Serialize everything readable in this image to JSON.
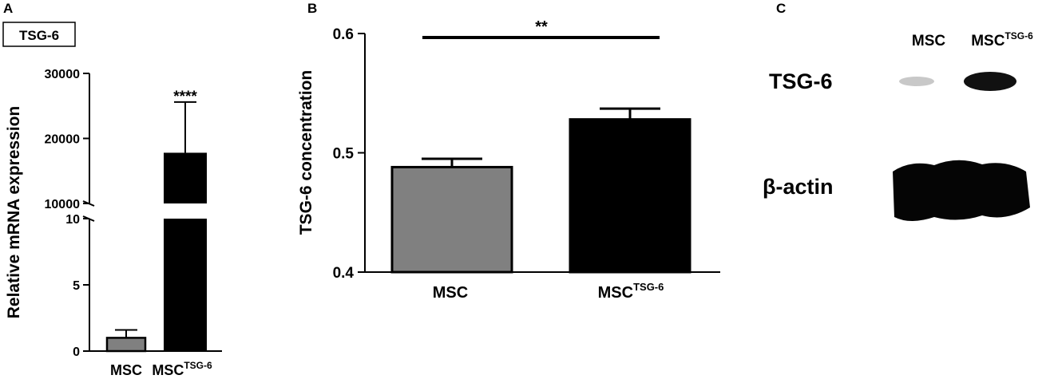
{
  "figure": {
    "panels": [
      {
        "letter": "A",
        "gene_box": "TSG-6",
        "ylabel": "Relative mRNA expression",
        "upper_ticks": [
          "10000",
          "20000",
          "30000"
        ],
        "lower_ticks": [
          "0",
          "5",
          "10"
        ],
        "significance": "****",
        "categories": [
          {
            "base": "MSC",
            "sup": ""
          },
          {
            "base": "MSC",
            "sup": "TSG-6"
          }
        ]
      },
      {
        "letter": "B",
        "ylabel": "TSG-6 concentration",
        "ticks": [
          "0.4",
          "0.5",
          "0.6"
        ],
        "significance": "**",
        "categories": [
          {
            "base": "MSC",
            "sup": ""
          },
          {
            "base": "MSC",
            "sup": "TSG-6"
          }
        ]
      },
      {
        "letter": "C",
        "lane_labels": [
          {
            "base": "MSC",
            "sup": ""
          },
          {
            "base": "MSC",
            "sup": "TSG-6"
          }
        ],
        "row_labels": [
          "TSG-6",
          "β-actin"
        ]
      }
    ]
  },
  "chart_data": [
    {
      "type": "bar",
      "panel": "A",
      "categories": [
        "MSC",
        "MSC TSG-6"
      ],
      "values": [
        1,
        17800
      ],
      "errors": [
        0.6,
        7800
      ],
      "colors": [
        "#808080",
        "#000000"
      ],
      "ylabel": "Relative mRNA expression",
      "y_axis_break": true,
      "ylim_lower": [
        0,
        10
      ],
      "ylim_upper": [
        10000,
        30000
      ],
      "significance": "****"
    },
    {
      "type": "bar",
      "panel": "B",
      "categories": [
        "MSC",
        "MSC TSG-6"
      ],
      "values": [
        0.488,
        0.528
      ],
      "errors": [
        0.007,
        0.009
      ],
      "colors": [
        "#808080",
        "#000000"
      ],
      "ylabel": "TSG-6 concentration",
      "ylim": [
        0.4,
        0.6
      ],
      "significance": "**"
    }
  ]
}
